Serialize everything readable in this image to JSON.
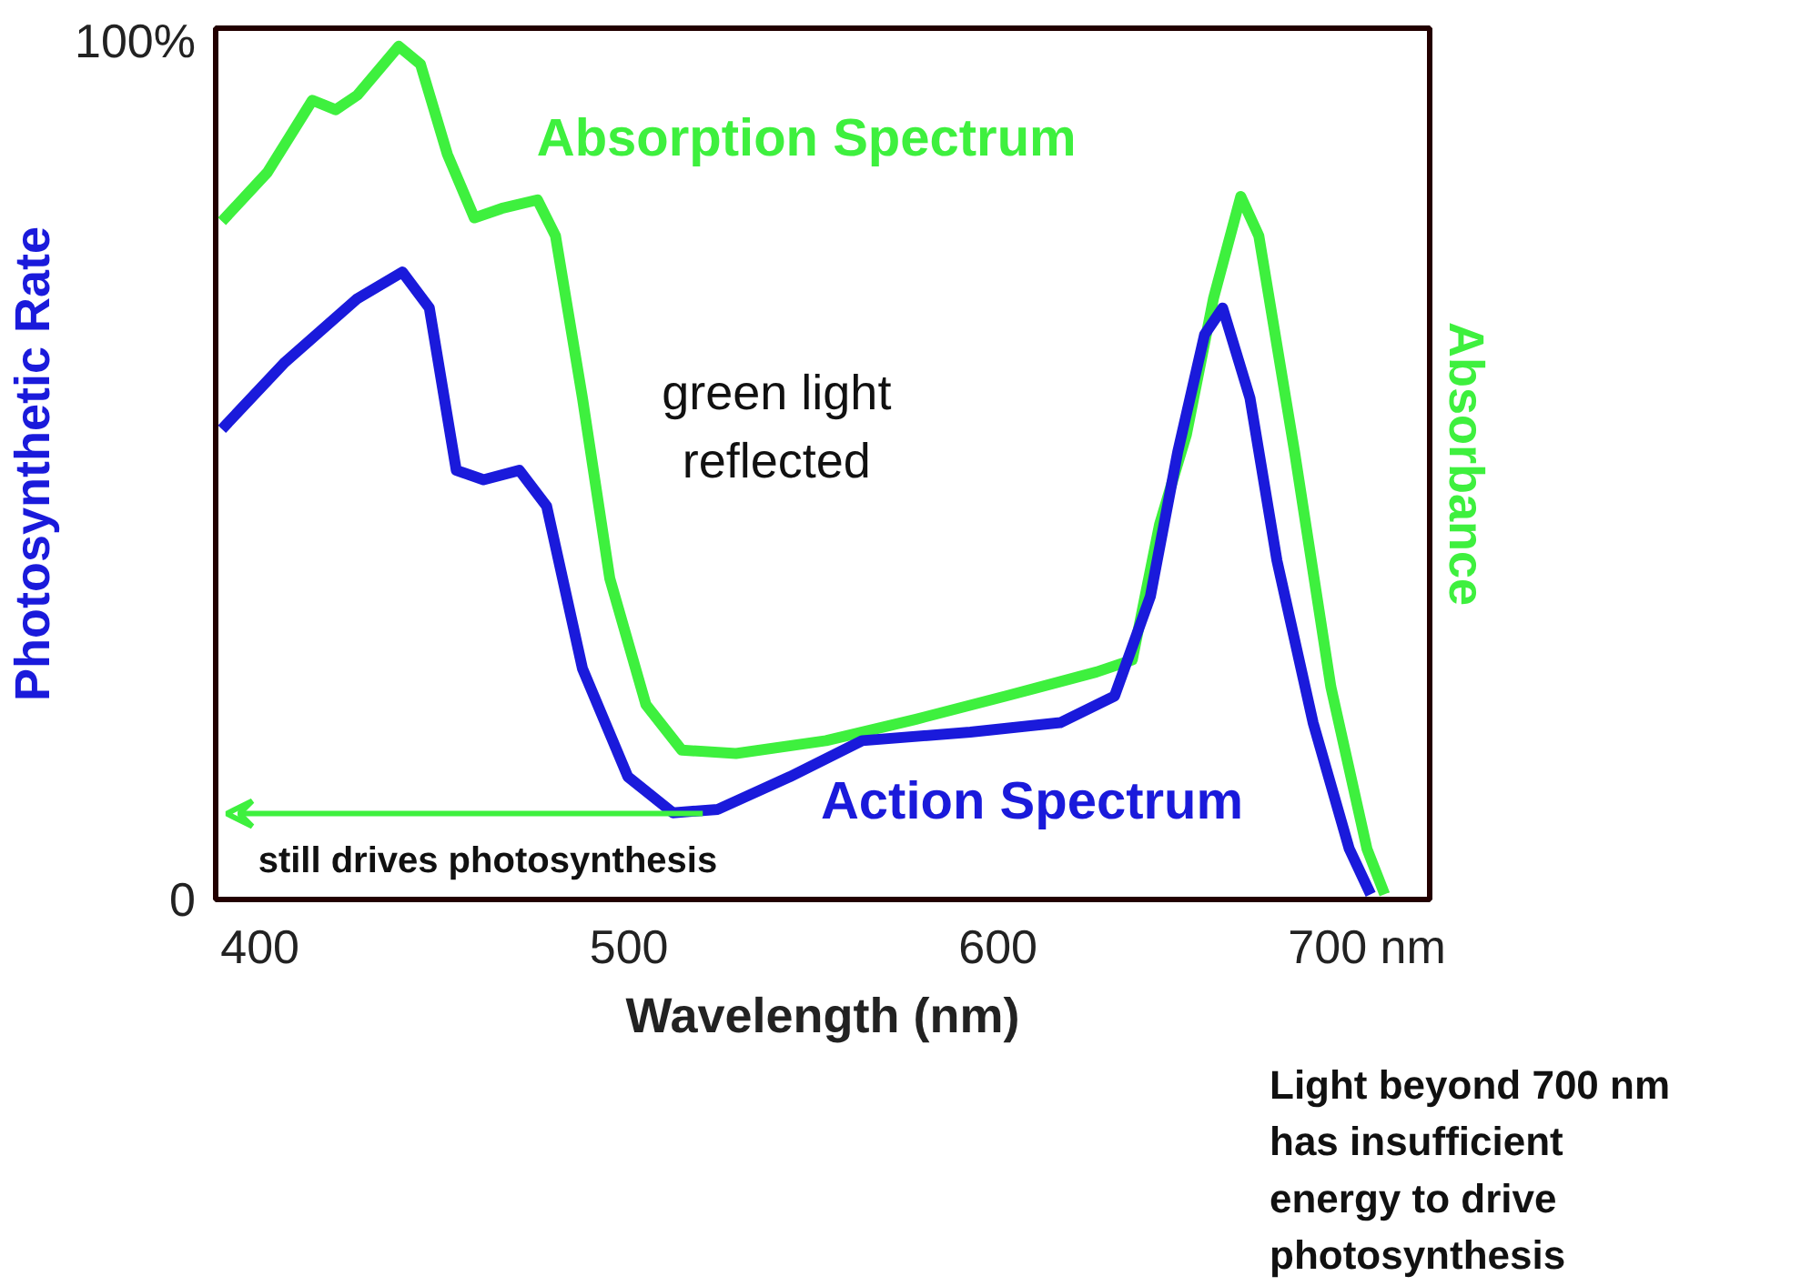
{
  "chart_data": {
    "type": "line",
    "xlabel": "Wavelength (nm)",
    "ylabel": "Photosynthetic Rate",
    "y2label": "Absorbance",
    "xlim": [
      388,
      717
    ],
    "xticks": [
      400,
      500,
      600,
      {
        "value": 700,
        "label": "700 nm"
      }
    ],
    "ylim": [
      0,
      101.5
    ],
    "yticks": [
      0,
      {
        "value": 100,
        "label": "100%"
      }
    ],
    "grid": false,
    "line_style": "solid",
    "series": [
      {
        "name": "Absorption Spectrum",
        "color": "#3ef03e",
        "x": [
          389.7,
          402.0,
          414.2,
          420.5,
          426.4,
          437.6,
          443.5,
          450.8,
          458.1,
          465.5,
          475.2,
          480.1,
          487.4,
          494.8,
          504.6,
          514.3,
          529.0,
          553.4,
          577.8,
          602.2,
          626.7,
          636.4,
          643.8,
          651.1,
          658.4,
          665.8,
          670.7,
          680.4,
          690.2,
          700.0,
          704.8
        ],
        "values": [
          79.0,
          84.7,
          93.1,
          92.0,
          93.7,
          99.4,
          97.3,
          86.8,
          79.4,
          80.5,
          81.5,
          77.3,
          58.4,
          37.4,
          22.7,
          17.4,
          17.0,
          18.5,
          21.0,
          23.7,
          26.5,
          27.9,
          43.7,
          54.2,
          70.0,
          81.9,
          77.3,
          52.1,
          24.8,
          5.9,
          0.6
        ]
      },
      {
        "name": "Action Spectrum",
        "color": "#1a1adb",
        "x": [
          389.7,
          406.8,
          426.4,
          438.6,
          445.9,
          453.2,
          460.6,
          470.3,
          477.7,
          487.4,
          499.7,
          511.9,
          524.1,
          543.6,
          563.2,
          592.5,
          616.9,
          631.6,
          641.3,
          648.7,
          656.0,
          660.9,
          668.3,
          675.6,
          685.4,
          695.2,
          701.0
        ],
        "values": [
          54.8,
          62.6,
          70.0,
          73.1,
          68.9,
          50.0,
          48.9,
          50.0,
          45.8,
          26.9,
          14.3,
          10.1,
          10.5,
          14.3,
          18.5,
          19.5,
          20.6,
          23.7,
          35.3,
          52.1,
          65.8,
          68.9,
          58.4,
          39.5,
          20.6,
          5.9,
          0.6
        ]
      }
    ],
    "annotations": [
      "green light\nreflected",
      "still drives photosynthesis",
      "Light beyond 700 nm\nhas insufficient\nenergy to  drive\nphotosynthesis"
    ]
  }
}
